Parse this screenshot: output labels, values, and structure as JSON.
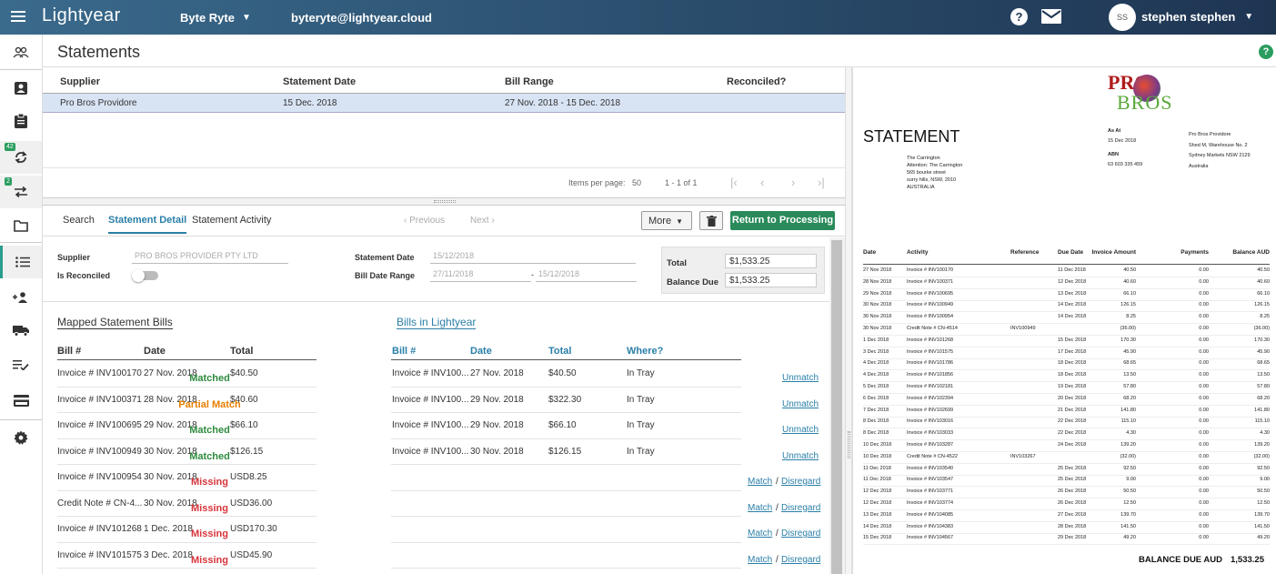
{
  "topbar": {
    "logo": "Lightyear",
    "org": "Byte Ryte",
    "email": "byteryte@lightyear.cloud",
    "avatar": "SS",
    "user": "stephen stephen"
  },
  "page": {
    "title": "Statements"
  },
  "nav": {
    "badge_sync": "42",
    "badge_transfer": "2"
  },
  "statements": {
    "headers": [
      "Supplier",
      "Statement Date",
      "Bill Range",
      "Reconciled?"
    ],
    "row": {
      "supplier": "Pro Bros Providore",
      "date": "15 Dec. 2018",
      "range": "27 Nov. 2018 - 15 Dec. 2018",
      "reconciled": ""
    },
    "pager": {
      "items_label": "Items per page:",
      "items_value": "50",
      "range": "1 - 1 of 1"
    }
  },
  "tabs": [
    "Search",
    "Statement Detail",
    "Statement Activity"
  ],
  "actions": {
    "previous": "Previous",
    "next": "Next",
    "more": "More",
    "return": "Return to Processing"
  },
  "detail": {
    "supplier_label": "Supplier",
    "supplier_value": "PRO BROS PROVIDER PTY LTD",
    "reconciled_label": "Is Reconciled",
    "stmt_date_label": "Statement Date",
    "stmt_date_value": "15/12/2018",
    "range_label": "Bill Date Range",
    "range_from": "27/11/2018",
    "range_sep": "-",
    "range_to": "15/12/2018",
    "total_label": "Total",
    "total_value": "$1,533.25",
    "balance_label": "Balance Due",
    "balance_value": "$1,533.25"
  },
  "mapped": {
    "title": "Mapped Statement Bills",
    "headers": [
      "Bill #",
      "Date",
      "Total"
    ],
    "rows": [
      {
        "bill": "Invoice # INV100170",
        "date": "27 Nov. 2018",
        "total": "$40.50",
        "status": "Matched",
        "cls": "st-m"
      },
      {
        "bill": "Invoice # INV100371",
        "date": "28 Nov. 2018",
        "total": "$40.60",
        "status": "Partial Match",
        "cls": "st-p"
      },
      {
        "bill": "Invoice # INV100695",
        "date": "29 Nov. 2018",
        "total": "$66.10",
        "status": "Matched",
        "cls": "st-m"
      },
      {
        "bill": "Invoice # INV100949",
        "date": "30 Nov. 2018",
        "total": "$126.15",
        "status": "Matched",
        "cls": "st-m"
      },
      {
        "bill": "Invoice # INV100954",
        "date": "30 Nov. 2018",
        "total": "USD8.25",
        "status": "Missing",
        "cls": "st-x"
      },
      {
        "bill": "Credit Note # CN-4...",
        "date": "30 Nov. 2018",
        "total": "USD36.00",
        "status": "Missing",
        "cls": "st-x"
      },
      {
        "bill": "Invoice # INV101268",
        "date": "1 Dec. 2018",
        "total": "USD170.30",
        "status": "Missing",
        "cls": "st-x"
      },
      {
        "bill": "Invoice # INV101575",
        "date": "3 Dec. 2018",
        "total": "USD45.90",
        "status": "Missing",
        "cls": "st-x"
      }
    ]
  },
  "lightyear": {
    "title": "Bills in Lightyear",
    "headers": [
      "Bill #",
      "Date",
      "Total",
      "Where?"
    ],
    "rows": [
      {
        "bill": "Invoice # INV100...",
        "date": "27 Nov. 2018",
        "total": "$40.50",
        "where": "In Tray",
        "action": "Unmatch"
      },
      {
        "bill": "Invoice # INV100...",
        "date": "29 Nov. 2018",
        "total": "$322.30",
        "where": "In Tray",
        "action": "Unmatch"
      },
      {
        "bill": "Invoice # INV100...",
        "date": "29 Nov. 2018",
        "total": "$66.10",
        "where": "In Tray",
        "action": "Unmatch"
      },
      {
        "bill": "Invoice # INV100...",
        "date": "30 Nov. 2018",
        "total": "$126.15",
        "where": "In Tray",
        "action": "Unmatch"
      }
    ],
    "match": "Match",
    "slash": "/",
    "disregard": "Disregard"
  },
  "doc": {
    "logo_top": "PRO",
    "logo_bottom": "BROS",
    "title": "STATEMENT",
    "as_at_label": "As At",
    "as_at": "15 Dec 2018",
    "abn_label": "ABN",
    "abn": "63 603 335 459",
    "from": [
      "Pro Bros Providore",
      "Shed M, Warehouse No. 2",
      "Sydney Markets NSW 2129",
      "Australia"
    ],
    "to": [
      "The Carrington",
      "Attention: The Carrington",
      "565 bourke street",
      "surry hills, NSW, 2010",
      "AUSTRALIA"
    ],
    "headers": [
      "Date",
      "Activity",
      "Reference",
      "Due Date",
      "Invoice Amount",
      "Payments",
      "Balance AUD"
    ],
    "rows": [
      [
        "27 Nov 2018",
        "Invoice # INV100170",
        "",
        "11 Dec 2018",
        "40.50",
        "0.00",
        "40.50"
      ],
      [
        "28 Nov 2018",
        "Invoice # INV100371",
        "",
        "12 Dec 2018",
        "40.60",
        "0.00",
        "40.60"
      ],
      [
        "29 Nov 2018",
        "Invoice # INV100695",
        "",
        "13 Dec 2018",
        "66.10",
        "0.00",
        "66.10"
      ],
      [
        "30 Nov 2018",
        "Invoice # INV100949",
        "",
        "14 Dec 2018",
        "126.15",
        "0.00",
        "126.15"
      ],
      [
        "30 Nov 2018",
        "Invoice # INV100954",
        "",
        "14 Dec 2018",
        "8.25",
        "0.00",
        "8.25"
      ],
      [
        "30 Nov 2018",
        "Credit Note # CN-4514",
        "INV100949",
        "",
        "(36.00)",
        "0.00",
        "(36.00)"
      ],
      [
        "1 Dec 2018",
        "Invoice # INV101268",
        "",
        "15 Dec 2018",
        "170.30",
        "0.00",
        "170.30"
      ],
      [
        "3 Dec 2018",
        "Invoice # INV101575",
        "",
        "17 Dec 2018",
        "45.90",
        "0.00",
        "45.90"
      ],
      [
        "4 Dec 2018",
        "Invoice # INV101786",
        "",
        "18 Dec 2018",
        "68.65",
        "0.00",
        "68.65"
      ],
      [
        "4 Dec 2018",
        "Invoice # INV101856",
        "",
        "18 Dec 2018",
        "13.50",
        "0.00",
        "13.50"
      ],
      [
        "5 Dec 2018",
        "Invoice # INV102181",
        "",
        "19 Dec 2018",
        "57.80",
        "0.00",
        "57.80"
      ],
      [
        "6 Dec 2018",
        "Invoice # INV102394",
        "",
        "20 Dec 2018",
        "68.20",
        "0.00",
        "68.20"
      ],
      [
        "7 Dec 2018",
        "Invoice # INV102699",
        "",
        "21 Dec 2018",
        "141.80",
        "0.00",
        "141.80"
      ],
      [
        "8 Dec 2018",
        "Invoice # INV103016",
        "",
        "22 Dec 2018",
        "115.10",
        "0.00",
        "115.10"
      ],
      [
        "8 Dec 2018",
        "Invoice # INV103033",
        "",
        "22 Dec 2018",
        "4.30",
        "0.00",
        "4.30"
      ],
      [
        "10 Dec 2018",
        "Invoice # INV103287",
        "",
        "24 Dec 2018",
        "139.20",
        "0.00",
        "139.20"
      ],
      [
        "10 Dec 2018",
        "Credit Note # CN-4522",
        "INV103267",
        "",
        "(32.00)",
        "0.00",
        "(32.00)"
      ],
      [
        "11 Dec 2018",
        "Invoice # INV103540",
        "",
        "25 Dec 2018",
        "92.50",
        "0.00",
        "92.50"
      ],
      [
        "11 Dec 2018",
        "Invoice # INV103547",
        "",
        "25 Dec 2018",
        "9.00",
        "0.00",
        "9.00"
      ],
      [
        "12 Dec 2018",
        "Invoice # INV103771",
        "",
        "26 Dec 2018",
        "50.50",
        "0.00",
        "50.50"
      ],
      [
        "12 Dec 2018",
        "Invoice # INV103774",
        "",
        "26 Dec 2018",
        "12.50",
        "0.00",
        "12.50"
      ],
      [
        "13 Dec 2018",
        "Invoice # INV104085",
        "",
        "27 Dec 2018",
        "139.70",
        "0.00",
        "139.70"
      ],
      [
        "14 Dec 2018",
        "Invoice # INV104383",
        "",
        "28 Dec 2018",
        "141.50",
        "0.00",
        "141.50"
      ],
      [
        "15 Dec 2018",
        "Invoice # INV104567",
        "",
        "29 Dec 2018",
        "49.20",
        "0.00",
        "49.20"
      ]
    ],
    "balance_label": "BALANCE DUE AUD",
    "balance_value": "1,533.25"
  }
}
